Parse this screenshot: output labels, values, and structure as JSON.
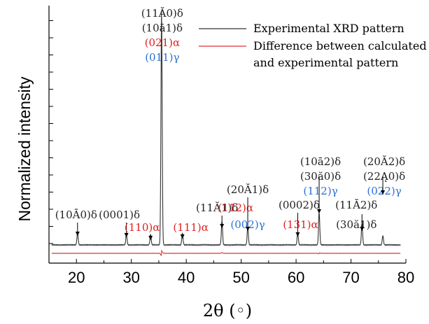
{
  "chart_data": {
    "type": "line",
    "xlabel": "2θ (◦)",
    "ylabel": "Normalized intensity",
    "xlim": [
      15,
      80
    ],
    "ylim": [
      0,
      1
    ],
    "x_ticks": [
      20,
      30,
      40,
      50,
      60,
      70,
      80
    ],
    "y_tick_labels": "none",
    "grid": false,
    "legend": {
      "placement": "top-right",
      "entries": [
        {
          "label": "Experimental XRD pattern",
          "color": "#333333"
        },
        {
          "label": "Difference between calculated",
          "label2": "and experimental pattern",
          "color": "#e03030"
        }
      ]
    },
    "series": [
      {
        "name": "Experimental XRD pattern",
        "color": "#333333",
        "baseline": 0.035,
        "peaks": [
          {
            "x": 20.2,
            "y": 0.05
          },
          {
            "x": 29.1,
            "y": 0.045
          },
          {
            "x": 33.5,
            "y": 0.045
          },
          {
            "x": 35.5,
            "y": 1.0
          },
          {
            "x": 39.3,
            "y": 0.05
          },
          {
            "x": 46.5,
            "y": 0.1
          },
          {
            "x": 51.2,
            "y": 0.075
          },
          {
            "x": 60.3,
            "y": 0.05
          },
          {
            "x": 64.2,
            "y": 0.14
          },
          {
            "x": 72.0,
            "y": 0.09
          },
          {
            "x": 75.8,
            "y": 0.04
          }
        ]
      },
      {
        "name": "Difference between calculated and experimental pattern",
        "color": "#e03030",
        "baseline": 0.0,
        "peaks": [
          {
            "x": 35.5,
            "y": 0.03
          }
        ]
      }
    ],
    "annotations": [
      {
        "x": 20.2,
        "lines": [
          {
            "text": "(10Ā0)δ",
            "color": "#222222"
          }
        ]
      },
      {
        "x": 29.1,
        "lines": [
          {
            "text": "(0001)δ",
            "color": "#222222"
          }
        ]
      },
      {
        "x": 33.5,
        "lines": [
          {
            "text": "(110)α",
            "color": "#e02020"
          }
        ]
      },
      {
        "x": 35.5,
        "lines": [
          {
            "text": "(11Ă0)δ",
            "color": "#222222"
          },
          {
            "text": "(10ā1)δ",
            "color": "#222222"
          },
          {
            "text": "(021)α",
            "color": "#e02020"
          },
          {
            "text": "(011)γ",
            "color": "#2a6fd6"
          }
        ]
      },
      {
        "x": 39.3,
        "lines": [
          {
            "text": "(111)α",
            "color": "#e02020"
          }
        ]
      },
      {
        "x": 46.5,
        "lines": [
          {
            "text": "(11Ă1)δ",
            "color": "#222222"
          }
        ]
      },
      {
        "x": 49.0,
        "lines": [
          {
            "text": "(112)α",
            "color": "#e02020"
          }
        ]
      },
      {
        "x": 51.2,
        "lines": [
          {
            "text": "(20Ă1)δ",
            "color": "#222222"
          },
          {
            "text": "(002)γ",
            "color": "#2a6fd6"
          }
        ]
      },
      {
        "x": 60.3,
        "lines": [
          {
            "text": "(0002)δ",
            "color": "#222222"
          },
          {
            "text": "(131)α",
            "color": "#e02020"
          }
        ]
      },
      {
        "x": 64.2,
        "lines": [
          {
            "text": "(10ā2)δ",
            "color": "#222222"
          },
          {
            "text": "(30ă0)δ",
            "color": "#222222"
          },
          {
            "text": "(112)γ",
            "color": "#2a6fd6"
          }
        ]
      },
      {
        "x": 72.0,
        "lines": [
          {
            "text": "(11Ă2)δ",
            "color": "#222222"
          },
          {
            "text": "(30ă1)δ",
            "color": "#222222"
          }
        ]
      },
      {
        "x": 75.8,
        "lines": [
          {
            "text": "(20Ă2)δ",
            "color": "#222222"
          },
          {
            "text": "(22Ą0)δ",
            "color": "#222222"
          },
          {
            "text": "(022)γ",
            "color": "#2a6fd6"
          }
        ]
      }
    ]
  }
}
